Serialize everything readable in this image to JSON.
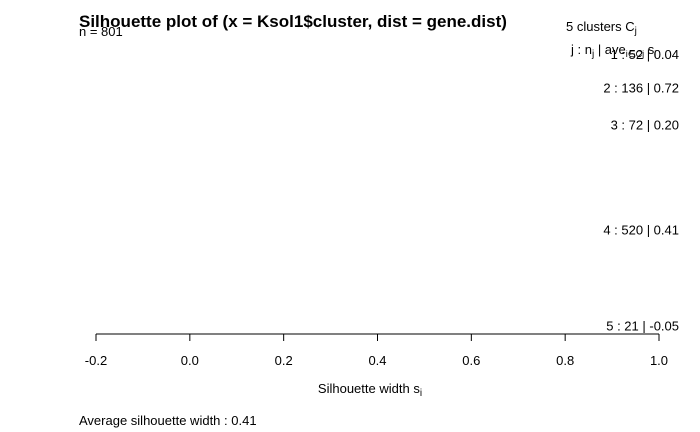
{
  "chart_data": {
    "type": "bar",
    "orientation": "horizontal",
    "title": "Silhouette plot of (x = Ksol1$cluster, dist = gene.dist)",
    "n_label": "n = 801",
    "clusters_header": "5  clusters  C",
    "clusters_header_sub": "j",
    "columns_header": "j :  n",
    "columns_header_sub": "j",
    "columns_header_rest": " | ave",
    "columns_header_sub2": "i∈Cj",
    "columns_header_tail": " s",
    "columns_header_sub3": "i",
    "clusters": [
      {
        "label": "1 :",
        "n": "52",
        "avg": "0.04"
      },
      {
        "label": "2 :",
        "n": "136",
        "avg": "0.72"
      },
      {
        "label": "3 :",
        "n": "72",
        "avg": "0.20"
      },
      {
        "label": "4 :",
        "n": "520",
        "avg": "0.41"
      },
      {
        "label": "5 :",
        "n": "21",
        "avg": "-0.05"
      }
    ],
    "xlabel": "Silhouette width s",
    "xlabel_sub": "i",
    "xlim": [
      -0.2,
      1.0
    ],
    "xticks": [
      "-0.2",
      "0.0",
      "0.2",
      "0.4",
      "0.6",
      "0.8",
      "1.0"
    ],
    "footer": "Average silhouette width :  0.41"
  }
}
